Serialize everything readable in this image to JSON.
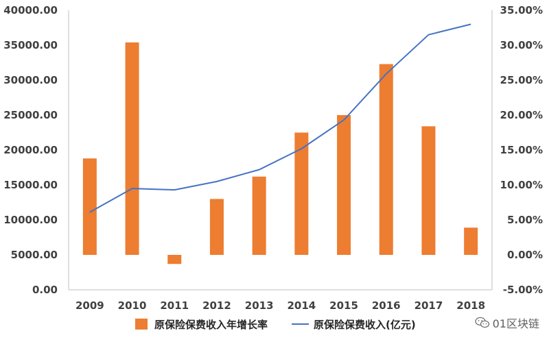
{
  "chart_data": {
    "type": "bar",
    "categories": [
      "2009",
      "2010",
      "2011",
      "2012",
      "2013",
      "2014",
      "2015",
      "2016",
      "2017",
      "2018"
    ],
    "series": [
      {
        "name": "原保险保费收入年增长率",
        "type": "bar",
        "axis": "right",
        "color": "#ED7D31",
        "values": [
          13.8,
          30.4,
          -1.3,
          8.0,
          11.2,
          17.5,
          20.0,
          27.3,
          18.4,
          3.9
        ]
      },
      {
        "name": "原保险保费收入(亿元)",
        "type": "line",
        "axis": "left",
        "color": "#4472C4",
        "values": [
          11100,
          14500,
          14300,
          15500,
          17200,
          20200,
          24300,
          30900,
          36500,
          38000
        ]
      }
    ],
    "yleft": {
      "ylim": [
        0,
        40000
      ],
      "ticks": [
        "0.00",
        "5000.00",
        "10000.00",
        "15000.00",
        "20000.00",
        "25000.00",
        "30000.00",
        "35000.00",
        "40000.00"
      ]
    },
    "yright": {
      "ylim": [
        -5,
        35
      ],
      "ticks": [
        "-5.00%",
        "0.00%",
        "5.00%",
        "10.00%",
        "15.00%",
        "20.00%",
        "25.00%",
        "30.00%",
        "35.00%"
      ]
    },
    "grid": false,
    "legend_position": "bottom"
  },
  "watermark": {
    "text": "01区块链",
    "icon": "wechat-icon"
  }
}
